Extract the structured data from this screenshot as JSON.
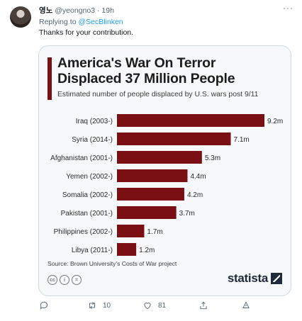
{
  "tweet": {
    "display_name": "영노",
    "handle": "@yeongno3",
    "time": "19h",
    "reply_prefix": "Replying to",
    "reply_handle": "@SecBlinken",
    "text": "Thanks for your contribution."
  },
  "card": {
    "title": "America's War On Terror\nDisplaced 37 Million People",
    "subtitle": "Estimated number of people displaced by U.S. wars post 9/11",
    "source": "Source: Brown University's Costs of War project",
    "brand": "statista",
    "accent_color": "#7a0f14"
  },
  "chart_data": {
    "type": "bar",
    "orientation": "horizontal",
    "categories": [
      "Iraq (2003-)",
      "Syria (2014-)",
      "Afghanistan (2001-)",
      "Yemen (2002-)",
      "Somalia (2002-)",
      "Pakistan (2001-)",
      "Philippines (2002-)",
      "Libya (2011-)"
    ],
    "values": [
      9.2,
      7.1,
      5.3,
      4.4,
      4.2,
      3.7,
      1.7,
      1.2
    ],
    "value_labels": [
      "9.2m",
      "7.1m",
      "5.3m",
      "4.4m",
      "4.2m",
      "3.7m",
      "1.7m",
      "1.2m"
    ],
    "xlim": [
      0,
      9.2
    ],
    "bar_color": "#7a0f14"
  },
  "actions": {
    "retweet_count": "10",
    "like_count": "81"
  }
}
